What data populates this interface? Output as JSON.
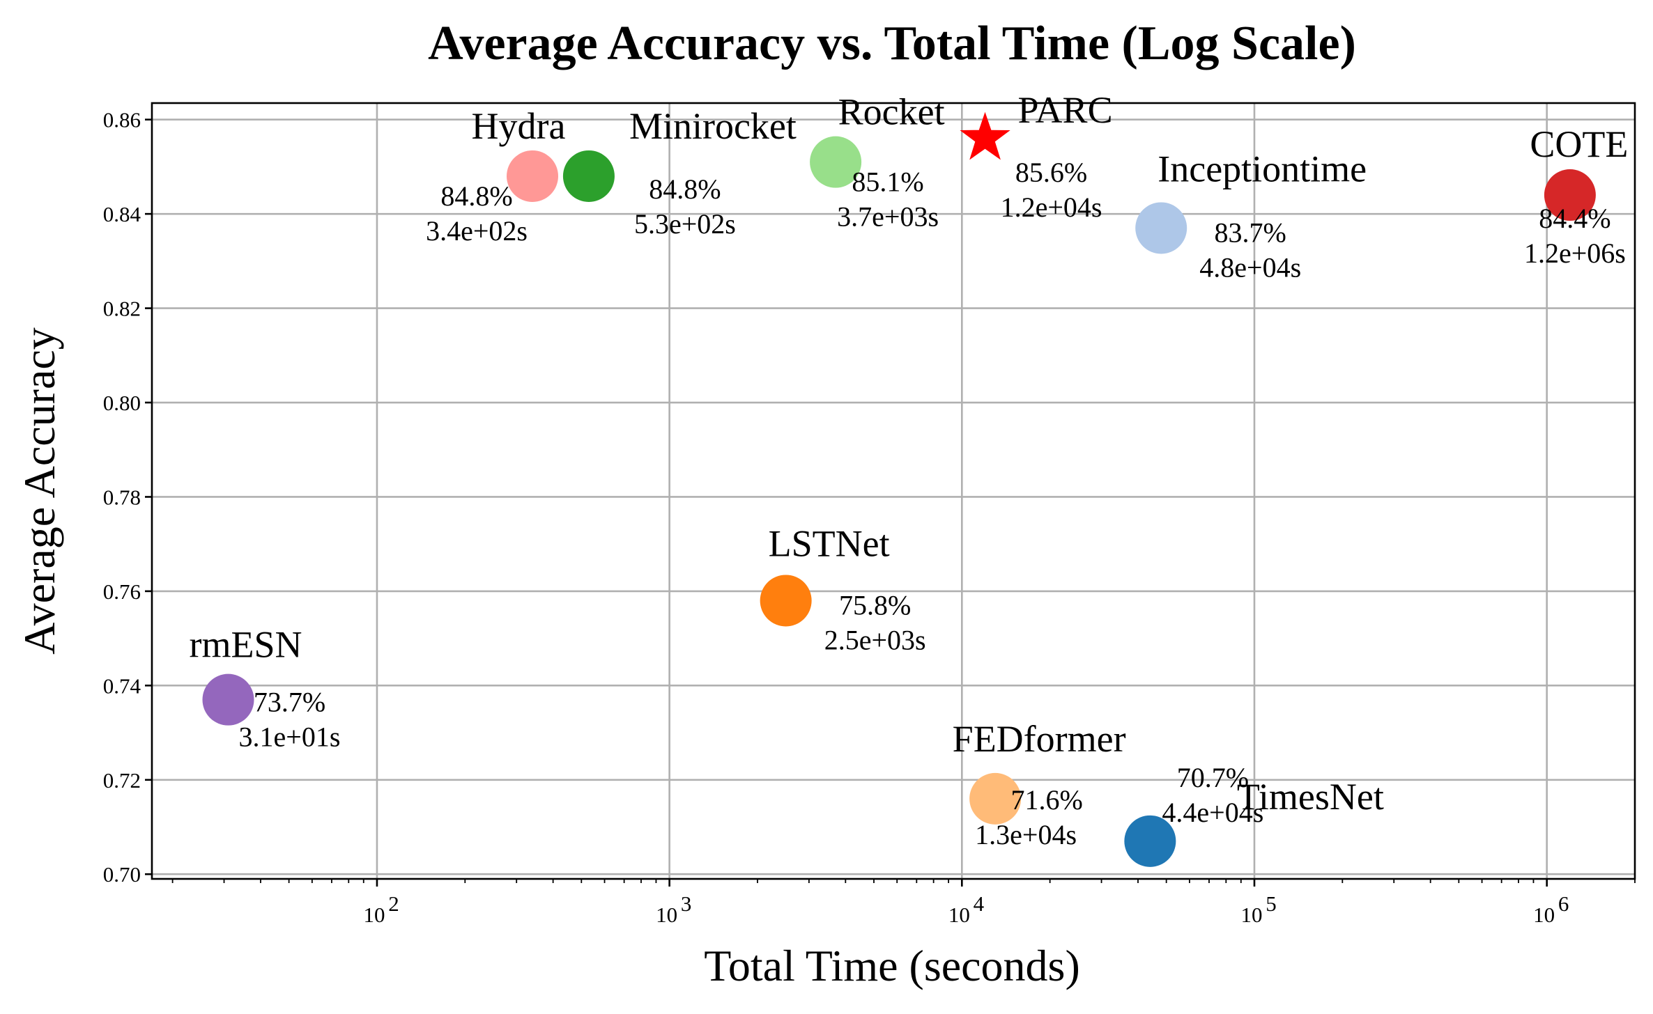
{
  "chart_data": {
    "type": "scatter",
    "title": "Average Accuracy vs. Total Time (Log Scale)",
    "xlabel": "Total Time (seconds)",
    "ylabel": "Average Accuracy",
    "xscale": "log",
    "xlim": [
      17,
      2000000
    ],
    "ylim": [
      0.699,
      0.8635
    ],
    "yticks": [
      0.7,
      0.72,
      0.74,
      0.76,
      0.78,
      0.8,
      0.82,
      0.84,
      0.86
    ],
    "ytick_labels": [
      "0.70",
      "0.72",
      "0.74",
      "0.76",
      "0.78",
      "0.80",
      "0.82",
      "0.84",
      "0.86"
    ],
    "xticks": [
      100,
      1000,
      10000,
      100000,
      1000000
    ],
    "xtick_labels": [
      {
        "base": "10",
        "exp": "2"
      },
      {
        "base": "10",
        "exp": "3"
      },
      {
        "base": "10",
        "exp": "4"
      },
      {
        "base": "10",
        "exp": "5"
      },
      {
        "base": "10",
        "exp": "6"
      }
    ],
    "grid": true,
    "points": [
      {
        "name": "Hydra",
        "x": 340,
        "y": 0.848,
        "acc_label": "84.8%",
        "time_label": "3.4e+02s",
        "color": "#ff9896",
        "marker": "circle"
      },
      {
        "name": "Minirocket",
        "x": 530,
        "y": 0.848,
        "acc_label": "84.8%",
        "time_label": "5.3e+02s",
        "color": "#2ca02c",
        "marker": "circle"
      },
      {
        "name": "Rocket",
        "x": 3700,
        "y": 0.851,
        "acc_label": "85.1%",
        "time_label": "3.7e+03s",
        "color": "#98df8a",
        "marker": "circle"
      },
      {
        "name": "PARC",
        "x": 12000,
        "y": 0.856,
        "acc_label": "85.6%",
        "time_label": "1.2e+04s",
        "color": "#ff0000",
        "marker": "star"
      },
      {
        "name": "Inceptiontime",
        "x": 48000,
        "y": 0.837,
        "acc_label": "83.7%",
        "time_label": "4.8e+04s",
        "color": "#aec7e8",
        "marker": "circle"
      },
      {
        "name": "COTE",
        "x": 1200000,
        "y": 0.844,
        "acc_label": "84.4%",
        "time_label": "1.2e+06s",
        "color": "#d62728",
        "marker": "circle"
      },
      {
        "name": "LSTNet",
        "x": 2500,
        "y": 0.758,
        "acc_label": "75.8%",
        "time_label": "2.5e+03s",
        "color": "#ff7f0e",
        "marker": "circle"
      },
      {
        "name": "rmESN",
        "x": 31,
        "y": 0.737,
        "acc_label": "73.7%",
        "time_label": "3.1e+01s",
        "color": "#9467bd",
        "marker": "circle"
      },
      {
        "name": "FEDformer",
        "x": 13000,
        "y": 0.716,
        "acc_label": "71.6%",
        "time_label": "1.3e+04s",
        "color": "#ffbb78",
        "marker": "circle"
      },
      {
        "name": "TimesNet",
        "x": 44000,
        "y": 0.707,
        "acc_label": "70.7%",
        "time_label": "4.4e+04s",
        "color": "#1f77b4",
        "marker": "circle"
      }
    ]
  }
}
